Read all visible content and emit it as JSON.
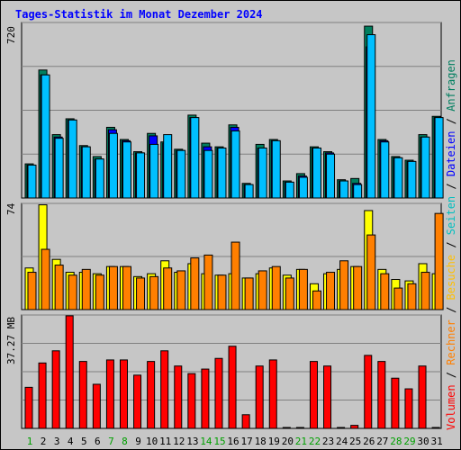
{
  "title": "Tages-Statistik im Monat Dezember 2024",
  "y_max_labels": {
    "requests": "720",
    "visits": "74",
    "volume": "37.27 MB"
  },
  "legend": {
    "volume": "Volumen",
    "rechner": "Rechner",
    "besuche": "Besuche",
    "seiten": "Seiten",
    "dateien": "Dateien",
    "anfragen": "Anfragen",
    "separator": " / "
  },
  "colors": {
    "anfragen": "#007f5f",
    "dateien": "#0000ff",
    "seiten": "#00bfff",
    "besuche": "#ffff00",
    "rechner": "#ff7f00",
    "volumen": "#ff0000",
    "weekend_label": "#00a000",
    "weekday_label": "#000000",
    "background": "#c6c6c6"
  },
  "chart_data": [
    {
      "type": "bar",
      "name": "requests",
      "ylim": [
        0,
        720
      ],
      "categories": [
        "1",
        "2",
        "3",
        "4",
        "5",
        "6",
        "7",
        "8",
        "9",
        "10",
        "11",
        "12",
        "13",
        "14",
        "15",
        "16",
        "17",
        "18",
        "19",
        "20",
        "21",
        "22",
        "23",
        "24",
        "25",
        "26",
        "27",
        "28",
        "29",
        "30",
        "31"
      ],
      "weekend": [
        1,
        7,
        8,
        14,
        15,
        21,
        22,
        28,
        29
      ],
      "series": [
        {
          "name": "Anfragen",
          "values": [
            140,
            525,
            260,
            325,
            215,
            170,
            290,
            240,
            190,
            265,
            230,
            200,
            340,
            225,
            210,
            300,
            60,
            220,
            240,
            70,
            100,
            210,
            190,
            75,
            80,
            705,
            240,
            170,
            155,
            260,
            335
          ]
        },
        {
          "name": "Dateien",
          "values": [
            135,
            505,
            250,
            320,
            210,
            160,
            280,
            235,
            185,
            255,
            225,
            195,
            330,
            210,
            205,
            290,
            55,
            205,
            235,
            65,
            90,
            205,
            185,
            70,
            60,
            620,
            235,
            165,
            150,
            250,
            330
          ]
        },
        {
          "name": "Seiten",
          "values": [
            135,
            505,
            245,
            320,
            210,
            160,
            265,
            230,
            185,
            220,
            260,
            195,
            330,
            195,
            205,
            275,
            55,
            205,
            235,
            65,
            85,
            205,
            180,
            70,
            55,
            670,
            230,
            165,
            150,
            250,
            330
          ]
        }
      ]
    },
    {
      "type": "bar",
      "name": "visits",
      "ylim": [
        0,
        74
      ],
      "categories": [
        "1",
        "2",
        "3",
        "4",
        "5",
        "6",
        "7",
        "8",
        "9",
        "10",
        "11",
        "12",
        "13",
        "14",
        "15",
        "16",
        "17",
        "18",
        "19",
        "20",
        "21",
        "22",
        "23",
        "24",
        "25",
        "26",
        "27",
        "28",
        "29",
        "30",
        "31"
      ],
      "weekend": [
        1,
        7,
        8,
        14,
        15,
        21,
        22,
        28,
        29
      ],
      "series": [
        {
          "name": "Besuche",
          "values": [
            29,
            73,
            35,
            26,
            26,
            25,
            30,
            30,
            23,
            25,
            34,
            26,
            32,
            25,
            24,
            25,
            22,
            25,
            29,
            24,
            28,
            18,
            25,
            28,
            30,
            69,
            28,
            21,
            20,
            32,
            25
          ]
        },
        {
          "name": "Rechner",
          "values": [
            26,
            42,
            31,
            24,
            28,
            24,
            30,
            30,
            22,
            23,
            29,
            27,
            36,
            38,
            24,
            47,
            22,
            27,
            30,
            22,
            28,
            13,
            26,
            34,
            30,
            52,
            25,
            15,
            18,
            26,
            67
          ]
        }
      ]
    },
    {
      "type": "bar",
      "name": "volume",
      "ylim": [
        0,
        37.27
      ],
      "y_unit": "MB",
      "categories": [
        "1",
        "2",
        "3",
        "4",
        "5",
        "6",
        "7",
        "8",
        "9",
        "10",
        "11",
        "12",
        "13",
        "14",
        "15",
        "16",
        "17",
        "18",
        "19",
        "20",
        "21",
        "22",
        "23",
        "24",
        "25",
        "26",
        "27",
        "28",
        "29",
        "30",
        "31"
      ],
      "weekend": [
        1,
        7,
        8,
        14,
        15,
        21,
        22,
        28,
        29
      ],
      "series": [
        {
          "name": "Volumen",
          "values": [
            13.5,
            21.5,
            25.5,
            37.0,
            22.0,
            14.5,
            22.5,
            22.5,
            17.5,
            22.0,
            25.5,
            20.5,
            18.0,
            19.5,
            23.0,
            27.0,
            4.5,
            20.5,
            22.5,
            0.3,
            0.3,
            22.0,
            20.5,
            0.3,
            1.0,
            24.0,
            22.0,
            16.5,
            13.0,
            20.5,
            0.3
          ]
        }
      ]
    }
  ]
}
